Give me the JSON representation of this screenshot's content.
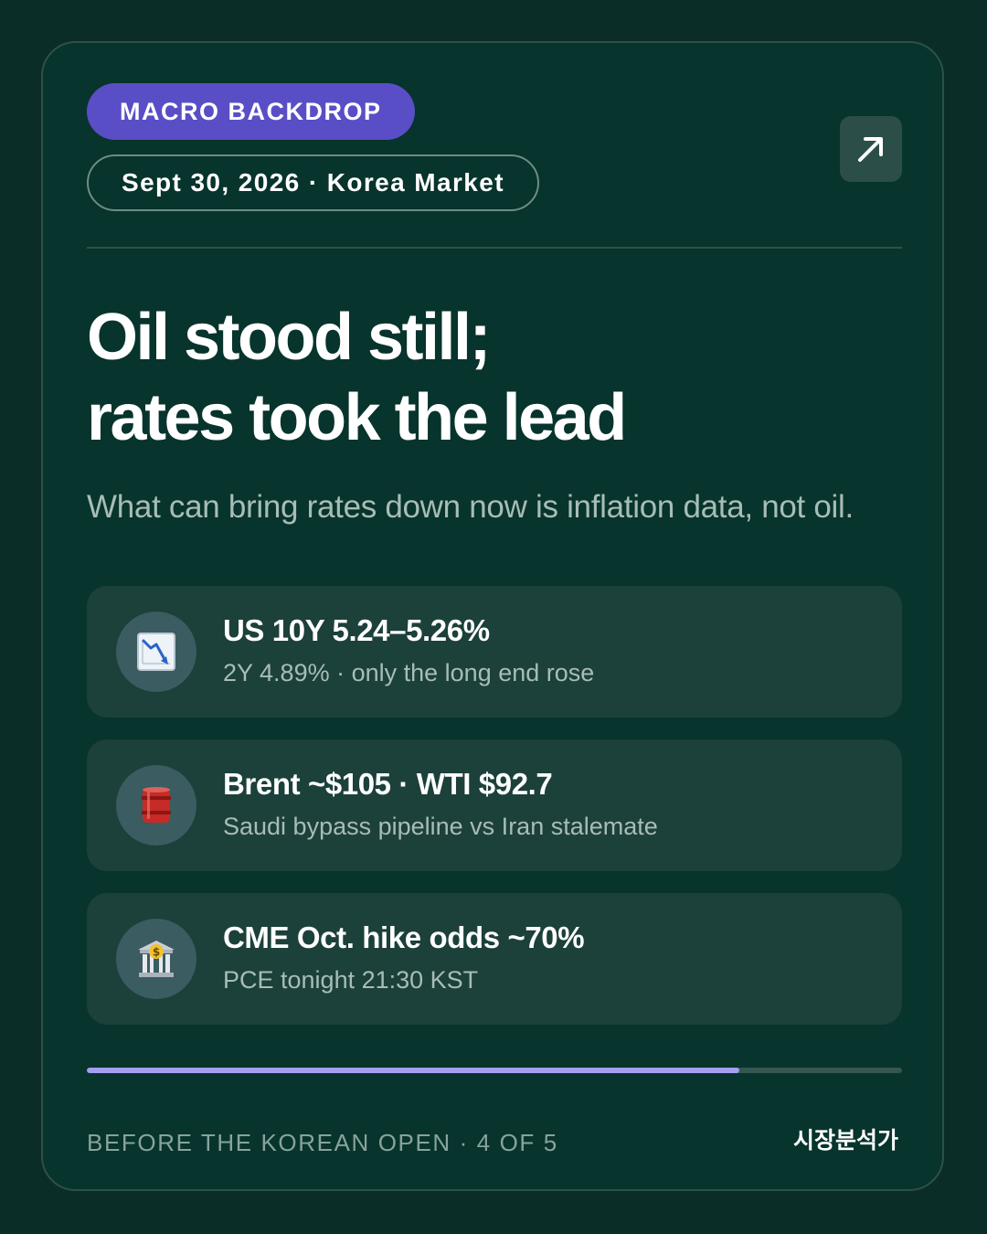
{
  "card": {
    "badge": "MACRO BACKDROP",
    "date_line": "Sept 30, 2026 · Korea Market",
    "open_icon": "arrow-up-right-icon",
    "headline": {
      "line1": "Oil stood still;",
      "line2": "rates took the lead"
    },
    "subtitle": "What can bring rates down now is inflation data, not oil.",
    "stats": [
      {
        "icon": "chart-decreasing-icon",
        "title": "US 10Y 5.24–5.26%",
        "subtitle": "2Y 4.89% · only the long end rose"
      },
      {
        "icon": "oil-barrel-icon",
        "title": "Brent ~$105 · WTI $92.7",
        "subtitle": "Saudi bypass pipeline vs Iran stalemate"
      },
      {
        "icon": "bank-icon",
        "title": "CME Oct. hike odds ~70%",
        "subtitle": "PCE tonight 21:30 KST"
      }
    ],
    "progress": {
      "current": 4,
      "total": 5,
      "fraction": 0.8
    },
    "footer": {
      "left": "BEFORE THE KOREAN OPEN · 4 OF 5",
      "right": "시장분석가"
    }
  },
  "colors": {
    "background": "#0a2e27",
    "card": "#07342c",
    "accent": "#5a4ec6",
    "progress": "#a59ff0"
  }
}
